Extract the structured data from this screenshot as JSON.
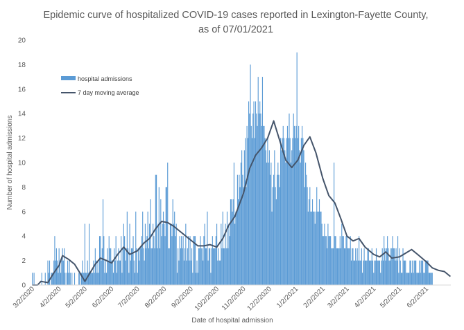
{
  "chart_data": {
    "type": "bar",
    "title": "Epidemic curve of hospitalized COVID-19 cases reported in Lexington-Fayette County, as of 07/01/2021",
    "xlabel": "Date of hospital admission",
    "ylabel": "Number of hospital admissions",
    "ylim": [
      0,
      20
    ],
    "yticks": [
      "0",
      "2",
      "4",
      "6",
      "8",
      "10",
      "12",
      "14",
      "16",
      "18",
      "20"
    ],
    "x_start": "3/2/2020",
    "x_end": "6/30/2021",
    "xticks": [
      "3/2/2020",
      "4/2/2020",
      "5/2/2020",
      "6/2/2020",
      "7/2/2020",
      "8/2/2020",
      "9/2/2020",
      "10/2/2020",
      "11/2/2020",
      "12/2/2020",
      "1/2/2021",
      "2/2/2021",
      "3/2/2021",
      "4/2/2021",
      "5/2/2021",
      "6/2/2021"
    ],
    "legend_position": "top-left",
    "series": [
      {
        "name": "hospital admissions",
        "kind": "bar",
        "color": "#5b9bd5",
        "values": [
          1,
          0,
          1,
          0,
          0,
          0,
          0,
          0,
          0,
          0,
          0,
          1,
          0,
          0,
          0,
          1,
          0,
          0,
          2,
          1,
          2,
          0,
          1,
          1,
          1,
          2,
          4,
          2,
          3,
          2,
          1,
          3,
          2,
          1,
          2,
          3,
          2,
          3,
          1,
          0,
          1,
          2,
          1,
          2,
          1,
          0,
          1,
          0,
          0,
          1,
          0,
          0,
          0,
          0,
          1,
          1,
          0,
          1,
          2,
          1,
          1,
          5,
          1,
          1,
          2,
          1,
          5,
          1,
          1,
          1,
          1,
          2,
          1,
          3,
          2,
          1,
          2,
          1,
          4,
          4,
          2,
          3,
          7,
          4,
          1,
          2,
          1,
          3,
          2,
          4,
          3,
          3,
          2,
          2,
          1,
          3,
          2,
          4,
          1,
          2,
          3,
          2,
          2,
          4,
          1,
          3,
          5,
          4,
          2,
          3,
          6,
          3,
          1,
          5,
          2,
          3,
          3,
          4,
          2,
          1,
          6,
          3,
          1,
          3,
          2,
          3,
          3,
          4,
          6,
          3,
          2,
          5,
          3,
          4,
          6,
          3,
          5,
          7,
          3,
          3,
          5,
          4,
          3,
          9,
          9,
          3,
          5,
          8,
          3,
          7,
          4,
          5,
          6,
          5,
          4,
          8,
          8,
          10,
          3,
          3,
          5,
          5,
          4,
          7,
          5,
          6,
          4,
          5,
          1,
          3,
          2,
          4,
          3,
          4,
          3,
          4,
          2,
          3,
          5,
          2,
          3,
          4,
          2,
          4,
          2,
          3,
          1,
          4,
          4,
          4,
          1,
          2,
          1,
          3,
          3,
          4,
          3,
          3,
          2,
          4,
          5,
          3,
          3,
          6,
          2,
          3,
          3,
          1,
          3,
          4,
          3,
          3,
          3,
          4,
          5,
          2,
          3,
          2,
          2,
          5,
          3,
          6,
          3,
          3,
          5,
          3,
          6,
          3,
          5,
          4,
          7,
          7,
          6,
          7,
          10,
          5,
          6,
          6,
          9,
          7,
          9,
          8,
          10,
          11,
          9,
          8,
          11,
          12,
          8,
          13,
          12,
          15,
          14,
          18,
          13,
          12,
          14,
          15,
          12,
          15,
          14,
          13,
          17,
          14,
          15,
          14,
          13,
          17,
          13,
          13,
          12,
          11,
          10,
          12,
          10,
          11,
          9,
          10,
          6,
          8,
          9,
          11,
          8,
          7,
          9,
          10,
          9,
          8,
          12,
          11,
          12,
          13,
          12,
          11,
          10,
          12,
          13,
          12,
          14,
          12,
          10,
          11,
          12,
          14,
          13,
          12,
          13,
          19,
          12,
          13,
          11,
          10,
          12,
          13,
          12,
          11,
          8,
          10,
          9,
          8,
          6,
          7,
          8,
          6,
          6,
          7,
          6,
          6,
          5,
          6,
          8,
          6,
          6,
          7,
          6,
          6,
          5,
          4,
          4,
          5,
          4,
          4,
          3,
          5,
          4,
          4,
          4,
          3,
          3,
          3,
          10,
          4,
          4,
          3,
          3,
          3,
          3,
          4,
          3,
          5,
          4,
          4,
          3,
          3,
          4,
          4,
          3,
          3,
          3,
          4,
          2,
          3,
          3,
          2,
          2,
          3,
          2,
          3,
          2,
          4,
          2,
          2,
          3,
          1,
          2,
          3,
          2,
          2,
          2,
          3,
          3,
          2,
          2,
          2,
          3,
          2,
          1,
          2,
          2,
          3,
          2,
          2,
          2,
          2,
          1,
          2,
          3,
          2,
          4,
          3,
          2,
          3,
          4,
          3,
          2,
          2,
          3,
          3,
          4,
          3,
          3,
          2,
          3,
          2,
          4,
          1,
          3,
          2,
          1,
          1,
          3,
          2,
          2,
          2,
          1,
          1,
          1,
          1,
          2,
          2,
          1,
          2,
          1,
          2,
          2,
          2,
          1,
          1,
          1,
          2,
          1,
          2,
          2,
          2,
          1,
          1,
          2,
          2,
          2,
          2,
          1,
          1,
          1,
          1,
          1,
          0
        ]
      },
      {
        "name": "7 day moving average",
        "kind": "line",
        "color": "#44546a",
        "points": [
          [
            "3/2/2020",
            0
          ],
          [
            "3/8/2020",
            0
          ],
          [
            "3/12/2020",
            0.3
          ],
          [
            "3/20/2020",
            0.2
          ],
          [
            "3/27/2020",
            1.0
          ],
          [
            "4/2/2020",
            1.6
          ],
          [
            "4/6/2020",
            2.4
          ],
          [
            "4/13/2020",
            2.1
          ],
          [
            "4/20/2020",
            1.7
          ],
          [
            "4/27/2020",
            0.9
          ],
          [
            "5/2/2020",
            0.3
          ],
          [
            "5/8/2020",
            1.0
          ],
          [
            "5/14/2020",
            1.7
          ],
          [
            "5/20/2020",
            2.2
          ],
          [
            "5/27/2020",
            2.0
          ],
          [
            "6/2/2020",
            1.8
          ],
          [
            "6/9/2020",
            2.5
          ],
          [
            "6/16/2020",
            3.1
          ],
          [
            "6/23/2020",
            2.5
          ],
          [
            "7/2/2020",
            2.8
          ],
          [
            "7/9/2020",
            3.4
          ],
          [
            "7/16/2020",
            3.8
          ],
          [
            "7/23/2020",
            4.6
          ],
          [
            "7/30/2020",
            5.2
          ],
          [
            "8/6/2020",
            5.1
          ],
          [
            "8/13/2020",
            4.8
          ],
          [
            "8/20/2020",
            4.4
          ],
          [
            "8/27/2020",
            4.0
          ],
          [
            "9/3/2020",
            3.6
          ],
          [
            "9/10/2020",
            3.2
          ],
          [
            "9/17/2020",
            3.2
          ],
          [
            "9/24/2020",
            3.3
          ],
          [
            "10/2/2020",
            3.1
          ],
          [
            "10/9/2020",
            3.8
          ],
          [
            "10/16/2020",
            4.9
          ],
          [
            "10/23/2020",
            5.6
          ],
          [
            "11/2/2020",
            7.5
          ],
          [
            "11/9/2020",
            9.5
          ],
          [
            "11/16/2020",
            10.6
          ],
          [
            "11/23/2020",
            11.2
          ],
          [
            "11/30/2020",
            12.0
          ],
          [
            "12/7/2020",
            13.4
          ],
          [
            "12/14/2020",
            11.8
          ],
          [
            "12/21/2020",
            10.2
          ],
          [
            "12/28/2020",
            9.6
          ],
          [
            "1/4/2021",
            10.2
          ],
          [
            "1/11/2021",
            11.4
          ],
          [
            "1/18/2021",
            12.1
          ],
          [
            "1/25/2021",
            10.8
          ],
          [
            "2/2/2021",
            8.7
          ],
          [
            "2/9/2021",
            7.3
          ],
          [
            "2/16/2021",
            6.7
          ],
          [
            "2/23/2021",
            5.4
          ],
          [
            "3/2/2021",
            4.0
          ],
          [
            "3/9/2021",
            3.6
          ],
          [
            "3/16/2021",
            3.8
          ],
          [
            "3/23/2021",
            3.1
          ],
          [
            "4/2/2021",
            2.5
          ],
          [
            "4/9/2021",
            2.3
          ],
          [
            "4/16/2021",
            2.7
          ],
          [
            "4/23/2021",
            2.2
          ],
          [
            "5/2/2021",
            2.3
          ],
          [
            "5/9/2021",
            2.6
          ],
          [
            "5/16/2021",
            2.9
          ],
          [
            "5/23/2021",
            2.5
          ],
          [
            "6/2/2021",
            1.9
          ],
          [
            "6/9/2021",
            1.4
          ],
          [
            "6/16/2021",
            1.2
          ],
          [
            "6/23/2021",
            1.1
          ],
          [
            "6/30/2021",
            0.7
          ]
        ]
      }
    ]
  }
}
